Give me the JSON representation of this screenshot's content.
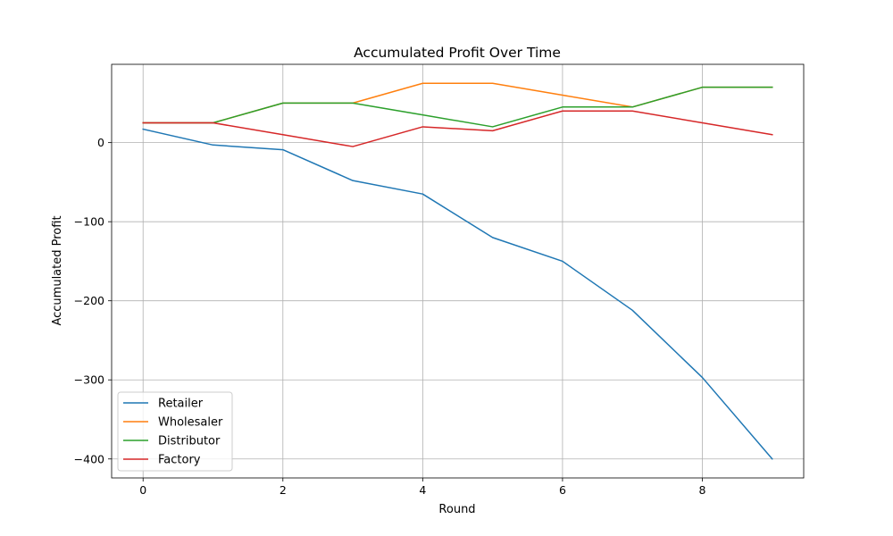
{
  "chart_data": {
    "type": "line",
    "title": "Accumulated Profit Over Time",
    "xlabel": "Round",
    "ylabel": "Accumulated Profit",
    "x": [
      0,
      1,
      2,
      3,
      4,
      5,
      6,
      7,
      8,
      9
    ],
    "xlim": [
      -0.45,
      9.45
    ],
    "ylim": [
      -424,
      99
    ],
    "xticks": [
      0,
      2,
      4,
      6,
      8
    ],
    "xtick_labels": [
      "0",
      "2",
      "4",
      "6",
      "8"
    ],
    "yticks": [
      0,
      -100,
      -200,
      -300,
      -400
    ],
    "ytick_labels": [
      "0",
      "−100",
      "−200",
      "−300",
      "−400"
    ],
    "grid": true,
    "legend_position": "lower-left",
    "series": [
      {
        "name": "Retailer",
        "color": "#1f77b4",
        "values": [
          17,
          -3,
          -9,
          -48,
          -65,
          -120,
          -150,
          -212,
          -297,
          -400
        ]
      },
      {
        "name": "Wholesaler",
        "color": "#ff7f0e",
        "values": [
          25,
          25,
          50,
          50,
          75,
          75,
          60,
          45,
          70,
          70
        ]
      },
      {
        "name": "Distributor",
        "color": "#2ca02c",
        "values": [
          25,
          25,
          50,
          50,
          35,
          20,
          45,
          45,
          70,
          70
        ]
      },
      {
        "name": "Factory",
        "color": "#d62728",
        "values": [
          25,
          25,
          10,
          -5,
          20,
          15,
          40,
          40,
          25,
          10
        ]
      }
    ]
  }
}
